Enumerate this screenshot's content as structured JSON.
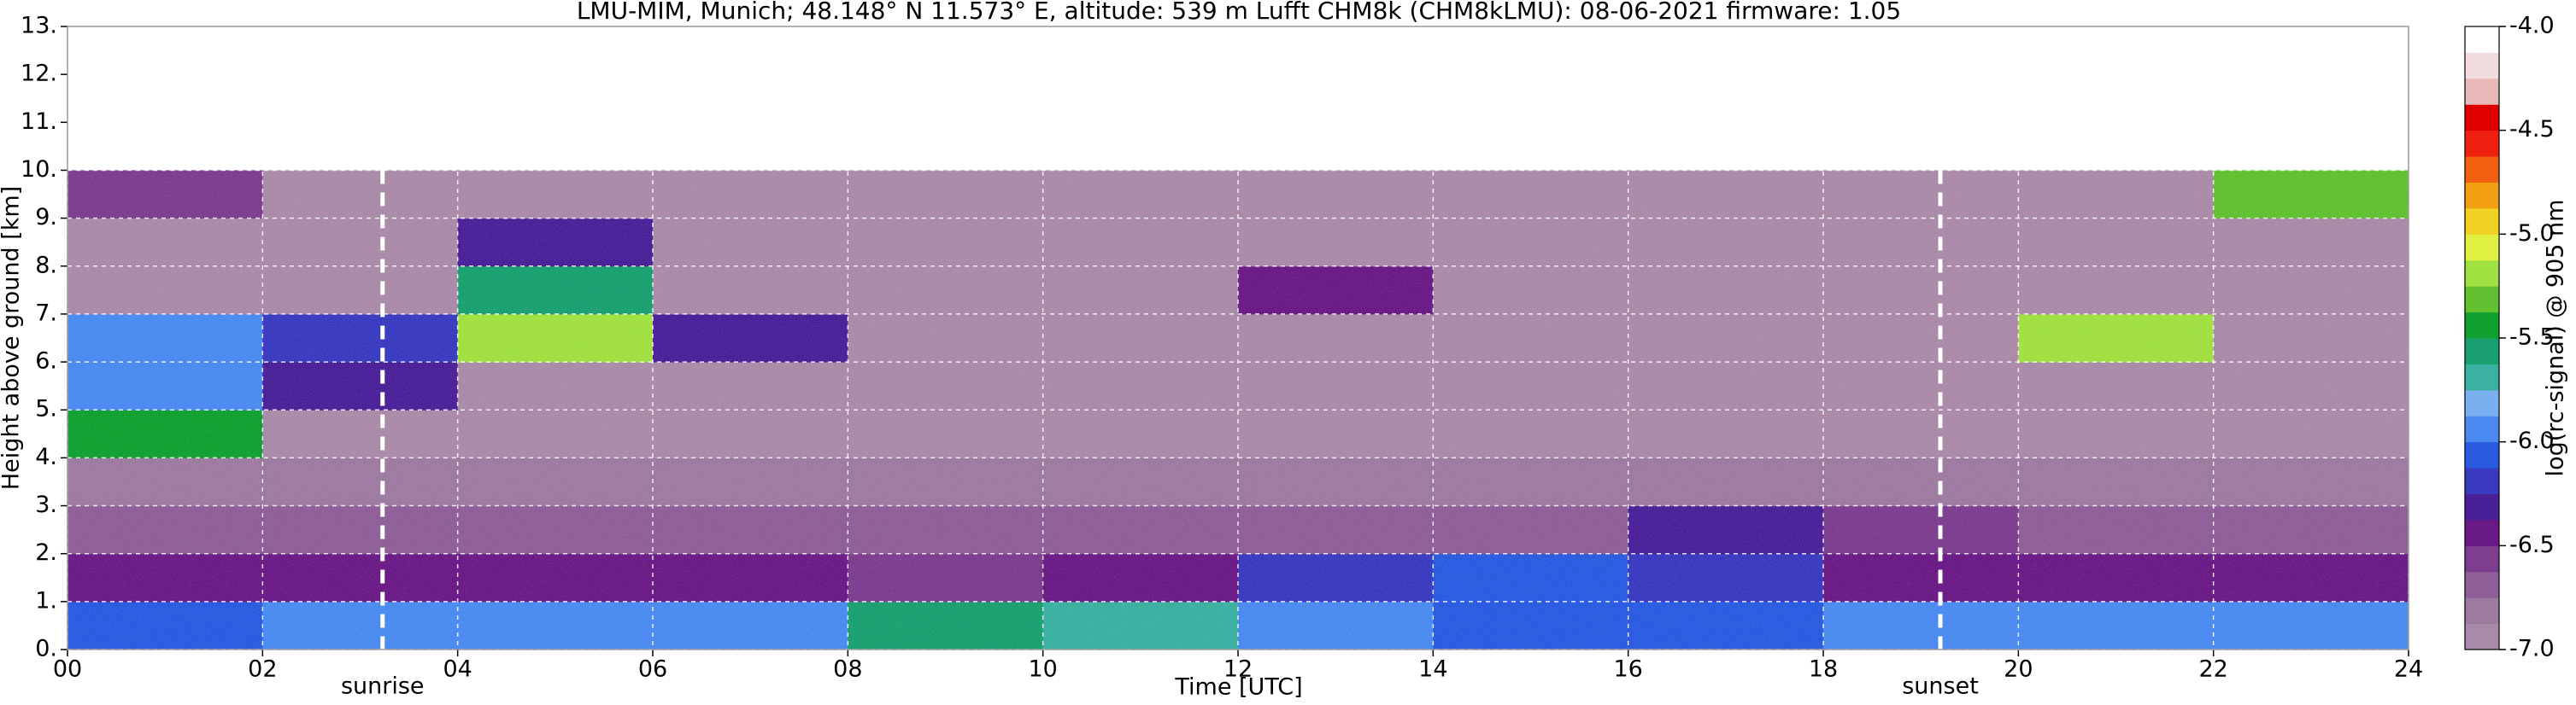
{
  "chart_data": {
    "type": "heatmap",
    "title": "LMU-MIM, Munich; 48.148° N 11.573° E, altitude: 539 m    Lufft CHM8k (CHM8kLMU): 08-06-2021    firmware: 1.05",
    "xlabel": "Time [UTC]",
    "ylabel": "Height above ground [km]",
    "colorbar_label": "log(rc-signal) @ 905 nm",
    "xlim": [
      0,
      24
    ],
    "ylim": [
      0,
      13
    ],
    "xticks": [
      {
        "value": 0,
        "label": "00"
      },
      {
        "value": 2,
        "label": "02"
      },
      {
        "value": 4,
        "label": "04"
      },
      {
        "value": 6,
        "label": "06"
      },
      {
        "value": 8,
        "label": "08"
      },
      10,
      12,
      14,
      16,
      18,
      20,
      22,
      24
    ],
    "yticks": [
      {
        "value": 0,
        "label": "0."
      },
      {
        "value": 1,
        "label": "1."
      },
      {
        "value": 2,
        "label": "2."
      },
      {
        "value": 3,
        "label": "3."
      },
      {
        "value": 4,
        "label": "4."
      },
      {
        "value": 5,
        "label": "5."
      },
      {
        "value": 6,
        "label": "6."
      },
      {
        "value": 7,
        "label": "7."
      },
      {
        "value": 8,
        "label": "8."
      },
      {
        "value": 9,
        "label": "9."
      },
      {
        "value": 10,
        "label": "10."
      },
      {
        "value": 11,
        "label": "11."
      },
      {
        "value": 12,
        "label": "12."
      },
      {
        "value": 13,
        "label": "13."
      }
    ],
    "clim": [
      -7,
      -4
    ],
    "cticks": [
      {
        "value": -4,
        "label": "-4.0"
      },
      -4.5,
      {
        "value": -5,
        "label": "-5.0"
      },
      -5.5,
      {
        "value": -6,
        "label": "-6.0"
      },
      -6.5,
      {
        "value": -7,
        "label": "-7.0"
      }
    ],
    "colorscale": [
      "#a98aa8",
      "#9d7a9f",
      "#8e5e98",
      "#7c3d8f",
      "#6a1a86",
      "#4a2098",
      "#3a3ac0",
      "#2a5ae0",
      "#4a8af0",
      "#7ab0f0",
      "#3ab0a0",
      "#1aa070",
      "#10a030",
      "#60c030",
      "#a0e040",
      "#e0f040",
      "#f0d020",
      "#f0a010",
      "#f06010",
      "#f02010",
      "#e00000",
      "#e8b8b8",
      "#f0dcdc",
      "#ffffff"
    ],
    "grid": true,
    "x_bins": [
      0,
      2,
      4,
      6,
      8,
      10,
      12,
      14,
      16,
      18,
      20,
      22,
      24
    ],
    "y_bins": [
      0,
      1,
      2,
      3,
      4,
      5,
      6,
      7,
      8,
      9,
      10
    ],
    "z": [
      [
        -6.1,
        -5.9,
        -6.0,
        -6.0,
        -5.6,
        -5.7,
        -6.0,
        -6.1,
        -6.1,
        -6.0,
        -6.0,
        -6.0
      ],
      [
        -6.4,
        -6.5,
        -6.5,
        -6.4,
        -6.6,
        -6.4,
        -6.2,
        -6.1,
        -6.2,
        -6.5,
        -6.5,
        -6.4
      ],
      [
        -6.7,
        -6.7,
        -6.7,
        -6.7,
        -6.7,
        -6.7,
        -6.7,
        -6.7,
        -6.3,
        -6.6,
        -6.7,
        -6.7
      ],
      [
        -6.8,
        -6.8,
        -6.8,
        -6.8,
        -6.8,
        -6.8,
        -6.8,
        -6.8,
        -6.8,
        -6.8,
        -6.8,
        -6.8
      ],
      [
        -5.5,
        -6.9,
        -6.9,
        -6.9,
        -6.9,
        -6.9,
        -6.9,
        -6.9,
        -6.9,
        -6.9,
        -6.9,
        -6.9
      ],
      [
        -6.0,
        -6.3,
        -6.9,
        -6.9,
        -6.9,
        -6.9,
        -6.9,
        -6.9,
        -6.9,
        -6.9,
        -6.9,
        -6.9
      ],
      [
        -6.0,
        -6.2,
        -5.2,
        -6.3,
        -6.9,
        -6.9,
        -6.9,
        -6.9,
        -6.9,
        -6.9,
        -5.2,
        -6.9
      ],
      [
        -6.9,
        -6.9,
        -5.6,
        -6.9,
        -6.9,
        -6.9,
        -6.4,
        -6.9,
        -6.9,
        -6.9,
        -6.9,
        -6.9
      ],
      [
        -6.9,
        -6.9,
        -6.3,
        -6.9,
        -6.9,
        -6.9,
        -6.9,
        -6.9,
        -6.9,
        -6.9,
        -6.9,
        -6.9
      ],
      [
        -6.6,
        -6.9,
        -6.9,
        -6.9,
        -6.9,
        -6.9,
        -6.9,
        -6.9,
        -6.9,
        -6.9,
        -6.9,
        -5.3
      ]
    ],
    "annotations": [
      {
        "text": "sunrise",
        "x": 3.23
      },
      {
        "text": "sunset",
        "x": 19.2
      }
    ]
  }
}
